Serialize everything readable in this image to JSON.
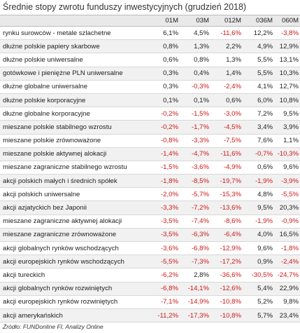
{
  "title": "Średnie stopy zwrotu funduszy inwestycyjnych (grudzień 2018)",
  "table": {
    "header": [
      "01M",
      "03M",
      "012M",
      "036M",
      "060M"
    ],
    "rows": [
      [
        "rynku surowców - metale szlachetne",
        "6,1%",
        "4,5%",
        "-11,6%",
        "12,2%",
        "-3,8%"
      ],
      [
        "dłużne polskie papiery skarbowe",
        "0,8%",
        "1,3%",
        "2,2%",
        "4,9%",
        "12,9%"
      ],
      [
        "dłużne polskie uniwersalne",
        "0,6%",
        "0,8%",
        "1,3%",
        "5,5%",
        "13,1%"
      ],
      [
        "gotówkowe i pieniężne PLN uniwersalne",
        "0,3%",
        "0,4%",
        "1,4%",
        "5,5%",
        "10,3%"
      ],
      [
        "dłużne globalne uniwersalne",
        "0,3%",
        "-0,3%",
        "-2,4%",
        "4,1%",
        "12,7%"
      ],
      [
        "dłużne polskie korporacyjne",
        "0,1%",
        "0,1%",
        "0,6%",
        "6,0%",
        "10,8%"
      ],
      [
        "dłużne globalne korporacyjne",
        "-0,2%",
        "-1,5%",
        "-3,0%",
        "7,2%",
        "9,5%"
      ],
      [
        "mieszane polskie stabilnego wzrostu",
        "-0,2%",
        "-1,7%",
        "-4,5%",
        "3,4%",
        "3,9%"
      ],
      [
        "mieszane polskie zrównoważone",
        "-0,8%",
        "-3,3%",
        "-7,5%",
        "7,6%",
        "1,1%"
      ],
      [
        "mieszane polskie aktywnej alokacji",
        "-1,4%",
        "-4,7%",
        "-11,6%",
        "-0,7%",
        "-10,3%"
      ],
      [
        "mieszane zagraniczne stabilnego wzrostu",
        "-1,5%",
        "-3,6%",
        "-4,9%",
        "0,6%",
        "9,6%"
      ],
      [
        "akcji polskich małych i średnich spółek",
        "-1,8%",
        "-8,5%",
        "-19,7%",
        "-1,9%",
        "-3,9%"
      ],
      [
        "akcji polskich uniwersalne",
        "-2,0%",
        "-5,7%",
        "-15,3%",
        "4,8%",
        "-5,5%"
      ],
      [
        "akcji azjatyckich bez Japonii",
        "-3,3%",
        "-7,2%",
        "-13,6%",
        "9,5%",
        "20,3%"
      ],
      [
        "mieszane zagraniczne aktywnej alokacji",
        "-3,5%",
        "-7,4%",
        "-8,6%",
        "-1,9%",
        "-0,9%"
      ],
      [
        "mieszane zagraniczne zrównoważone",
        "-3,5%",
        "-6,3%",
        "-6,4%",
        "4,0%",
        "16,5%"
      ],
      [
        "akcji globalnych rynków wschodzących",
        "-3,6%",
        "-6,8%",
        "-12,9%",
        "9,6%",
        "-1,8%"
      ],
      [
        "akcji europejskich rynków wschodzących",
        "-5,5%",
        "-7,3%",
        "-17,2%",
        "0,9%",
        "-2,4%"
      ],
      [
        "akcji tureckich",
        "-6,2%",
        "2,8%",
        "-36,6%",
        "-30,5%",
        "-24,7%"
      ],
      [
        "akcji globalnych rynków rozwiniętych",
        "-6,8%",
        "-14,1%",
        "-12,6%",
        "5,4%",
        "22,9%"
      ],
      [
        "akcji europejskich rynków rozwiniętych",
        "-7,1%",
        "-14,9%",
        "-10,8%",
        "5,2%",
        "9,8%"
      ],
      [
        "akcji amerykańskich",
        "-11,2%",
        "-17,3%",
        "-10,8%",
        "5,7%",
        "23,4%"
      ]
    ]
  },
  "source": "Źródło: FUNDonline FI, Analizy Online"
}
